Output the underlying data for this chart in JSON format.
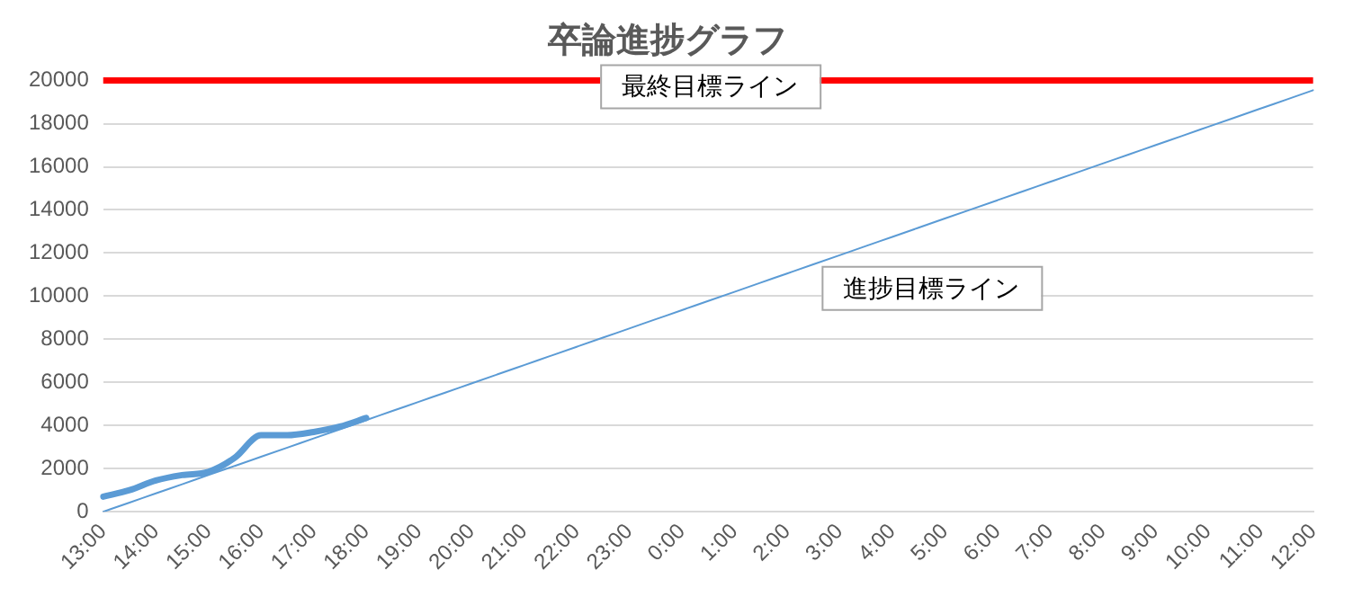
{
  "chart_data": {
    "type": "line",
    "title": "卒論進捗グラフ",
    "categories": [
      "13:00",
      null,
      "14:00",
      null,
      "15:00",
      null,
      "16:00",
      null,
      "17:00",
      null,
      "18:00",
      null,
      "19:00",
      null,
      "20:00",
      null,
      "21:00",
      null,
      "22:00",
      null,
      "23:00",
      null,
      "0:00",
      null,
      "1:00",
      null,
      "2:00",
      null,
      "3:00",
      null,
      "4:00",
      null,
      "5:00",
      null,
      "6:00",
      null,
      "7:00",
      null,
      "8:00",
      null,
      "9:00",
      null,
      "10:00",
      null,
      "11:00",
      null,
      "12:00"
    ],
    "series": [
      {
        "color": "#5b9bd5",
        "values": [
          700,
          1000,
          1450,
          1700,
          1850,
          2500,
          3550,
          3550,
          3700,
          3950,
          4350,
          null,
          null,
          null,
          null,
          null,
          null,
          null,
          null,
          null,
          null,
          null,
          null,
          null,
          null,
          null,
          null,
          null,
          null,
          null,
          null,
          null,
          null,
          null,
          null,
          null,
          null,
          null,
          null,
          null,
          null,
          null,
          null,
          null,
          null,
          null,
          null
        ]
      },
      {
        "name": "進捗目標ライン",
        "color": "#5b9bd5",
        "values": [
          0,
          425,
          850,
          1275,
          1700,
          2125,
          2550,
          2975,
          3400,
          3825,
          4250,
          4675,
          5100,
          5525,
          5950,
          6375,
          6800,
          7225,
          7650,
          8075,
          8500,
          8925,
          9350,
          9775,
          10200,
          10625,
          11050,
          11475,
          11900,
          12325,
          12750,
          13175,
          13600,
          14025,
          14450,
          14875,
          15300,
          15725,
          16150,
          16575,
          17000,
          17425,
          17850,
          18275,
          18700,
          19125,
          19550
        ]
      }
    ],
    "ref_lines": [
      {
        "axis": "y",
        "value": 20000,
        "label": "最終目標ライン",
        "color": "#ff0000"
      }
    ],
    "ylim": [
      0,
      20000
    ],
    "yticks": [
      0,
      2000,
      4000,
      6000,
      8000,
      10000,
      12000,
      14000,
      16000,
      18000,
      20000
    ],
    "grid": "y",
    "legend": false,
    "marker": "none",
    "line_style": "solid"
  }
}
